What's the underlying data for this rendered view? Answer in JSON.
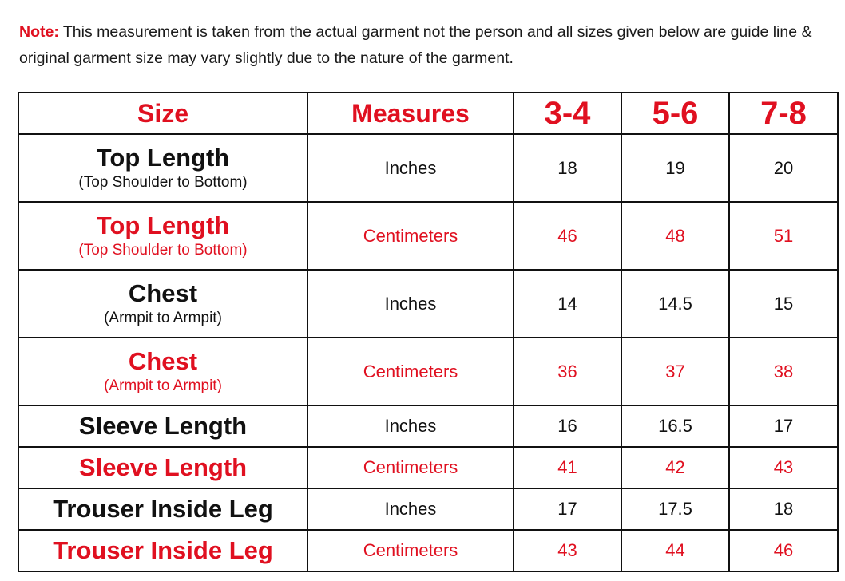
{
  "note": {
    "label": "Note:",
    "text": " This measurement is taken from the actual garment not the person and all sizes given below are guide line & original garment size may vary slightly due to the nature of the garment."
  },
  "table": {
    "headers": [
      "Size",
      "Measures",
      "3-4",
      "5-6",
      "7-8"
    ],
    "rows": [
      {
        "name": "Top Length",
        "sub": "(Top Shoulder to Bottom)",
        "unit": "Inches",
        "values": [
          "18",
          "19",
          "20"
        ],
        "color": "black"
      },
      {
        "name": "Top Length",
        "sub": "(Top Shoulder to Bottom)",
        "unit": "Centimeters",
        "values": [
          "46",
          "48",
          "51"
        ],
        "color": "red"
      },
      {
        "name": "Chest",
        "sub": "(Armpit to Armpit)",
        "unit": "Inches",
        "values": [
          "14",
          "14.5",
          "15"
        ],
        "color": "black"
      },
      {
        "name": "Chest",
        "sub": "(Armpit to Armpit)",
        "unit": "Centimeters",
        "values": [
          "36",
          "37",
          "38"
        ],
        "color": "red"
      },
      {
        "name": "Sleeve Length",
        "unit": "Inches",
        "values": [
          "16",
          "16.5",
          "17"
        ],
        "color": "black"
      },
      {
        "name": "Sleeve Length",
        "unit": "Centimeters",
        "values": [
          "41",
          "42",
          "43"
        ],
        "color": "red"
      },
      {
        "name": "Trouser Inside Leg",
        "unit": "Inches",
        "values": [
          "17",
          "17.5",
          "18"
        ],
        "color": "black"
      },
      {
        "name": "Trouser Inside Leg",
        "unit": "Centimeters",
        "values": [
          "43",
          "44",
          "46"
        ],
        "color": "red"
      }
    ]
  },
  "colors": {
    "accent": "#e01020",
    "text": "#111111"
  }
}
